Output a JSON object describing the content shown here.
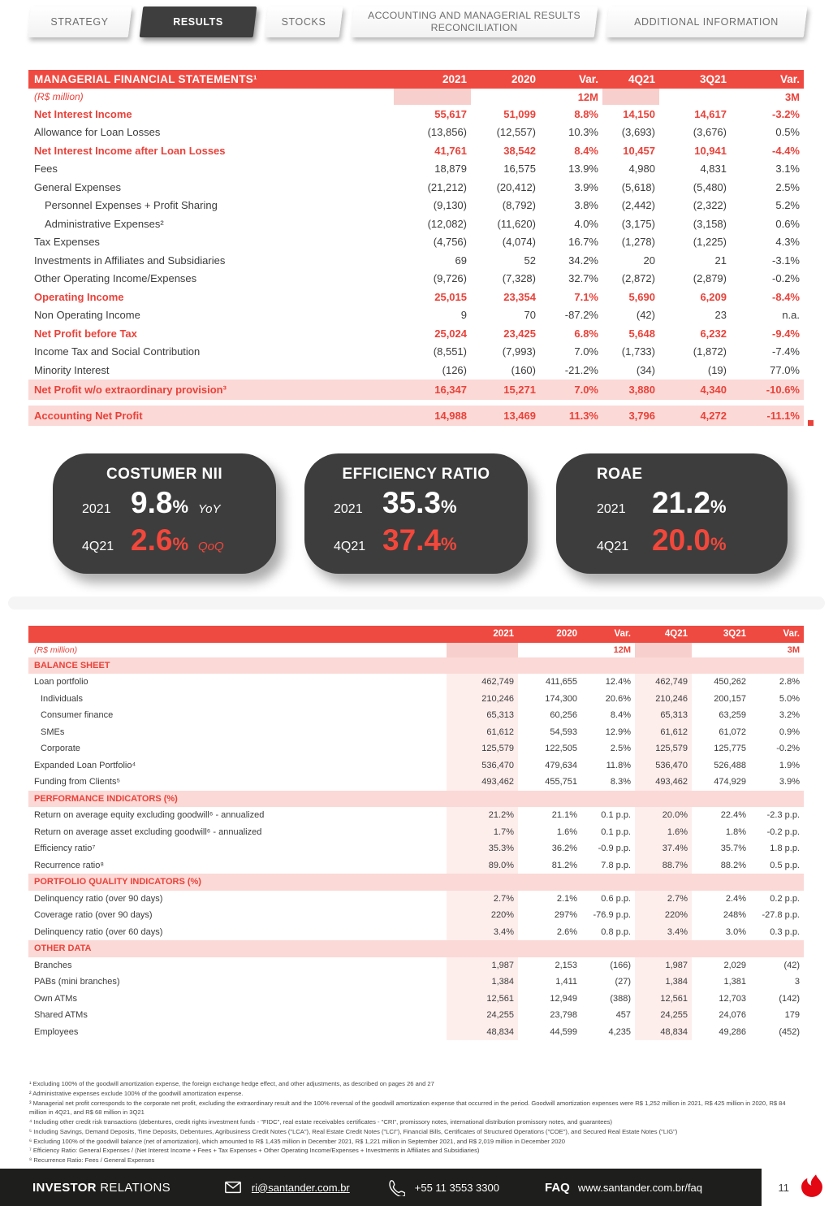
{
  "colors": {
    "accent_red": "#e9423a",
    "header_red": "#ef4a41",
    "highlight_pink": "#fbd9d6",
    "card_dark": "#3d3d3d",
    "footer_dark": "#1e1e1c",
    "flame_red": "#e30613"
  },
  "tabs": [
    {
      "label": "STRATEGY",
      "active": false
    },
    {
      "label": "RESULTS",
      "active": true
    },
    {
      "label": "STOCKS",
      "active": false
    },
    {
      "label": "ACCOUNTING AND MANAGERIAL RESULTS RECONCILIATION",
      "active": false
    },
    {
      "label": "ADDITIONAL INFORMATION",
      "active": false
    }
  ],
  "table1": {
    "title": "MANAGERIAL FINANCIAL STATEMENTS¹",
    "unit_label": "(R$ million)",
    "columns": [
      "2021",
      "2020",
      "Var.",
      "4Q21",
      "3Q21",
      "Var."
    ],
    "subheader": [
      "",
      "",
      "12M",
      "",
      "",
      "3M"
    ],
    "rows": [
      {
        "label": "Net Interest Income",
        "values": [
          "55,617",
          "51,099",
          "8.8%",
          "14,150",
          "14,617",
          "-3.2%"
        ],
        "style": "red"
      },
      {
        "label": "Allowance for Loan Losses",
        "values": [
          "(13,856)",
          "(12,557)",
          "10.3%",
          "(3,693)",
          "(3,676)",
          "0.5%"
        ],
        "style": "plain"
      },
      {
        "label": "Net Interest Income after Loan Losses",
        "values": [
          "41,761",
          "38,542",
          "8.4%",
          "10,457",
          "10,941",
          "-4.4%"
        ],
        "style": "red"
      },
      {
        "label": "Fees",
        "values": [
          "18,879",
          "16,575",
          "13.9%",
          "4,980",
          "4,831",
          "3.1%"
        ],
        "style": "plain"
      },
      {
        "label": "General Expenses",
        "values": [
          "(21,212)",
          "(20,412)",
          "3.9%",
          "(5,618)",
          "(5,480)",
          "2.5%"
        ],
        "style": "plain"
      },
      {
        "label": "Personnel Expenses + Profit Sharing",
        "values": [
          "(9,130)",
          "(8,792)",
          "3.8%",
          "(2,442)",
          "(2,322)",
          "5.2%"
        ],
        "style": "indent"
      },
      {
        "label": "Administrative Expenses²",
        "values": [
          "(12,082)",
          "(11,620)",
          "4.0%",
          "(3,175)",
          "(3,158)",
          "0.6%"
        ],
        "style": "indent"
      },
      {
        "label": "Tax Expenses",
        "values": [
          "(4,756)",
          "(4,074)",
          "16.7%",
          "(1,278)",
          "(1,225)",
          "4.3%"
        ],
        "style": "plain"
      },
      {
        "label": "Investments in Affiliates and Subsidiaries",
        "values": [
          "69",
          "52",
          "34.2%",
          "20",
          "21",
          "-3.1%"
        ],
        "style": "plain"
      },
      {
        "label": "Other Operating Income/Expenses",
        "values": [
          "(9,726)",
          "(7,328)",
          "32.7%",
          "(2,872)",
          "(2,879)",
          "-0.2%"
        ],
        "style": "plain"
      },
      {
        "label": "Operating Income",
        "values": [
          "25,015",
          "23,354",
          "7.1%",
          "5,690",
          "6,209",
          "-8.4%"
        ],
        "style": "red"
      },
      {
        "label": "Non Operating Income",
        "values": [
          "9",
          "70",
          "-87.2%",
          "(42)",
          "23",
          "n.a."
        ],
        "style": "plain"
      },
      {
        "label": "Net Profit before Tax",
        "values": [
          "25,024",
          "23,425",
          "6.8%",
          "5,648",
          "6,232",
          "-9.4%"
        ],
        "style": "red"
      },
      {
        "label": "Income Tax and Social Contribution",
        "values": [
          "(8,551)",
          "(7,993)",
          "7.0%",
          "(1,733)",
          "(1,872)",
          "-7.4%"
        ],
        "style": "plain"
      },
      {
        "label": "Minority Interest",
        "values": [
          "(126)",
          "(160)",
          "-21.2%",
          "(34)",
          "(19)",
          "77.0%"
        ],
        "style": "plain"
      },
      {
        "label": "Net Profit w/o extraordinary provision³",
        "values": [
          "16,347",
          "15,271",
          "7.0%",
          "3,880",
          "4,340",
          "-10.6%"
        ],
        "style": "highlight"
      },
      {
        "style": "gap"
      },
      {
        "label": "Accounting Net Profit",
        "values": [
          "14,988",
          "13,469",
          "11.3%",
          "3,796",
          "4,272",
          "-11.1%"
        ],
        "style": "highlight"
      }
    ]
  },
  "kpis": [
    {
      "title": "COSTUMER NII",
      "rows": [
        {
          "period": "2021",
          "value": "9.8",
          "unit": "%",
          "note": "YoY"
        },
        {
          "period": "4Q21",
          "value": "2.6",
          "unit": "%",
          "note": "QoQ"
        }
      ]
    },
    {
      "title": "EFFICIENCY RATIO",
      "rows": [
        {
          "period": "2021",
          "value": "35.3",
          "unit": "%",
          "note": ""
        },
        {
          "period": "4Q21",
          "value": "37.4",
          "unit": "%",
          "note": ""
        }
      ]
    },
    {
      "title": "ROAE",
      "rows": [
        {
          "period": "2021",
          "value": "21.2",
          "unit": "%",
          "note": ""
        },
        {
          "period": "4Q21",
          "value": "20.0",
          "unit": "%",
          "note": ""
        }
      ]
    }
  ],
  "table2": {
    "title": "",
    "unit_label": "(R$ million)",
    "columns": [
      "2021",
      "2020",
      "Var.",
      "4Q21",
      "3Q21",
      "Var."
    ],
    "subheader": [
      "",
      "",
      "12M",
      "",
      "",
      "3M"
    ],
    "rows": [
      {
        "label": "BALANCE SHEET",
        "style": "section"
      },
      {
        "label": "Loan portfolio",
        "values": [
          "462,749",
          "411,655",
          "12.4%",
          "462,749",
          "450,262",
          "2.8%"
        ],
        "style": "plain"
      },
      {
        "label": "Individuals",
        "values": [
          "210,246",
          "174,300",
          "20.6%",
          "210,246",
          "200,157",
          "5.0%"
        ],
        "style": "indent"
      },
      {
        "label": "Consumer finance",
        "values": [
          "65,313",
          "60,256",
          "8.4%",
          "65,313",
          "63,259",
          "3.2%"
        ],
        "style": "indent"
      },
      {
        "label": "SMEs",
        "values": [
          "61,612",
          "54,593",
          "12.9%",
          "61,612",
          "61,072",
          "0.9%"
        ],
        "style": "indent"
      },
      {
        "label": "Corporate",
        "values": [
          "125,579",
          "122,505",
          "2.5%",
          "125,579",
          "125,775",
          "-0.2%"
        ],
        "style": "indent"
      },
      {
        "label": "Expanded Loan Portfolio⁴",
        "values": [
          "536,470",
          "479,634",
          "11.8%",
          "536,470",
          "526,488",
          "1.9%"
        ],
        "style": "plain"
      },
      {
        "label": "Funding from Clients⁵",
        "values": [
          "493,462",
          "455,751",
          "8.3%",
          "493,462",
          "474,929",
          "3.9%"
        ],
        "style": "plain"
      },
      {
        "label": "PERFORMANCE INDICATORS (%)",
        "style": "section"
      },
      {
        "label": "Return on average equity excluding goodwill⁶ - annualized",
        "values": [
          "21.2%",
          "21.1%",
          "0.1 p.p.",
          "20.0%",
          "22.4%",
          "-2.3 p.p."
        ],
        "style": "plain"
      },
      {
        "label": "Return on average asset excluding goodwill⁶ - annualized",
        "values": [
          "1.7%",
          "1.6%",
          "0.1 p.p.",
          "1.6%",
          "1.8%",
          "-0.2 p.p."
        ],
        "style": "plain"
      },
      {
        "label": "Efficiency ratio⁷",
        "values": [
          "35.3%",
          "36.2%",
          "-0.9 p.p.",
          "37.4%",
          "35.7%",
          "1.8 p.p."
        ],
        "style": "plain"
      },
      {
        "label": "Recurrence ratio⁸",
        "values": [
          "89.0%",
          "81.2%",
          "7.8 p.p.",
          "88.7%",
          "88.2%",
          "0.5 p.p."
        ],
        "style": "plain"
      },
      {
        "label": "PORTFOLIO QUALITY INDICATORS (%)",
        "style": "section"
      },
      {
        "label": "Delinquency ratio (over 90 days)",
        "values": [
          "2.7%",
          "2.1%",
          "0.6 p.p.",
          "2.7%",
          "2.4%",
          "0.2 p.p."
        ],
        "style": "plain"
      },
      {
        "label": "Coverage ratio (over 90 days)",
        "values": [
          "220%",
          "297%",
          "-76.9 p.p.",
          "220%",
          "248%",
          "-27.8 p.p."
        ],
        "style": "plain"
      },
      {
        "label": "Delinquency ratio (over 60 days)",
        "values": [
          "3.4%",
          "2.6%",
          "0.8 p.p.",
          "3.4%",
          "3.0%",
          "0.3 p.p."
        ],
        "style": "plain"
      },
      {
        "label": "OTHER DATA",
        "style": "section"
      },
      {
        "label": "Branches",
        "values": [
          "1,987",
          "2,153",
          "(166)",
          "1,987",
          "2,029",
          "(42)"
        ],
        "style": "plain"
      },
      {
        "label": "PABs (mini branches)",
        "values": [
          "1,384",
          "1,411",
          "(27)",
          "1,384",
          "1,381",
          "3"
        ],
        "style": "plain"
      },
      {
        "label": "Own ATMs",
        "values": [
          "12,561",
          "12,949",
          "(388)",
          "12,561",
          "12,703",
          "(142)"
        ],
        "style": "plain"
      },
      {
        "label": "Shared ATMs",
        "values": [
          "24,255",
          "23,798",
          "457",
          "24,255",
          "24,076",
          "179"
        ],
        "style": "plain"
      },
      {
        "label": "Employees",
        "values": [
          "48,834",
          "44,599",
          "4,235",
          "48,834",
          "49,286",
          "(452)"
        ],
        "style": "plain"
      }
    ]
  },
  "footnotes": [
    "¹ Excluding 100% of the goodwill amortization expense, the foreign exchange hedge effect, and other adjustments, as described on pages 26 and 27",
    "² Administrative expenses exclude 100% of the goodwill amortization expense.",
    "³ Managerial net profit corresponds to the corporate net profit, excluding the extraordinary result and the 100% reversal of the goodwill amortization expense that occurred in the period. Goodwill amortization expenses were R$ 1,252 million in 2021, R$ 425 million in 2020, R$ 84 million in 4Q21, and R$ 68 million in 3Q21",
    "⁴ Including other credit risk transactions (debentures, credit rights investment funds - \"FIDC\", real estate receivables certificates - \"CRI\", promissory notes, international distribution promissory notes, and guarantees)",
    "⁵ Including Savings, Demand Deposits, Time Deposits, Debentures, Agribusiness Credit Notes (\"LCA\"), Real Estate Credit Notes (\"LCI\"), Financial Bills, Certificates of Structured Operations (\"COE\"), and Secured Real Estate Notes (\"LIG\")",
    "⁶ Excluding 100% of the goodwill balance (net of amortization), which amounted to R$ 1,435 million in December 2021, R$ 1,221 million in September 2021, and R$ 2,019 million in December 2020",
    "⁷ Efficiency Ratio: General Expenses / (Net Interest Income + Fees + Tax Expenses + Other Operating Income/Expenses + Investments in Affiliates and Subsidiaries)",
    "⁸ Recurrence Ratio: Fees / General Expenses"
  ],
  "footer": {
    "brand_bold": "INVESTOR",
    "brand_rest": " RELATIONS",
    "email": "ri@santander.com.br",
    "phone": "+55 11 3553 3300",
    "faq_label": "FAQ",
    "faq_url": "www.santander.com.br/faq",
    "page": "11"
  }
}
